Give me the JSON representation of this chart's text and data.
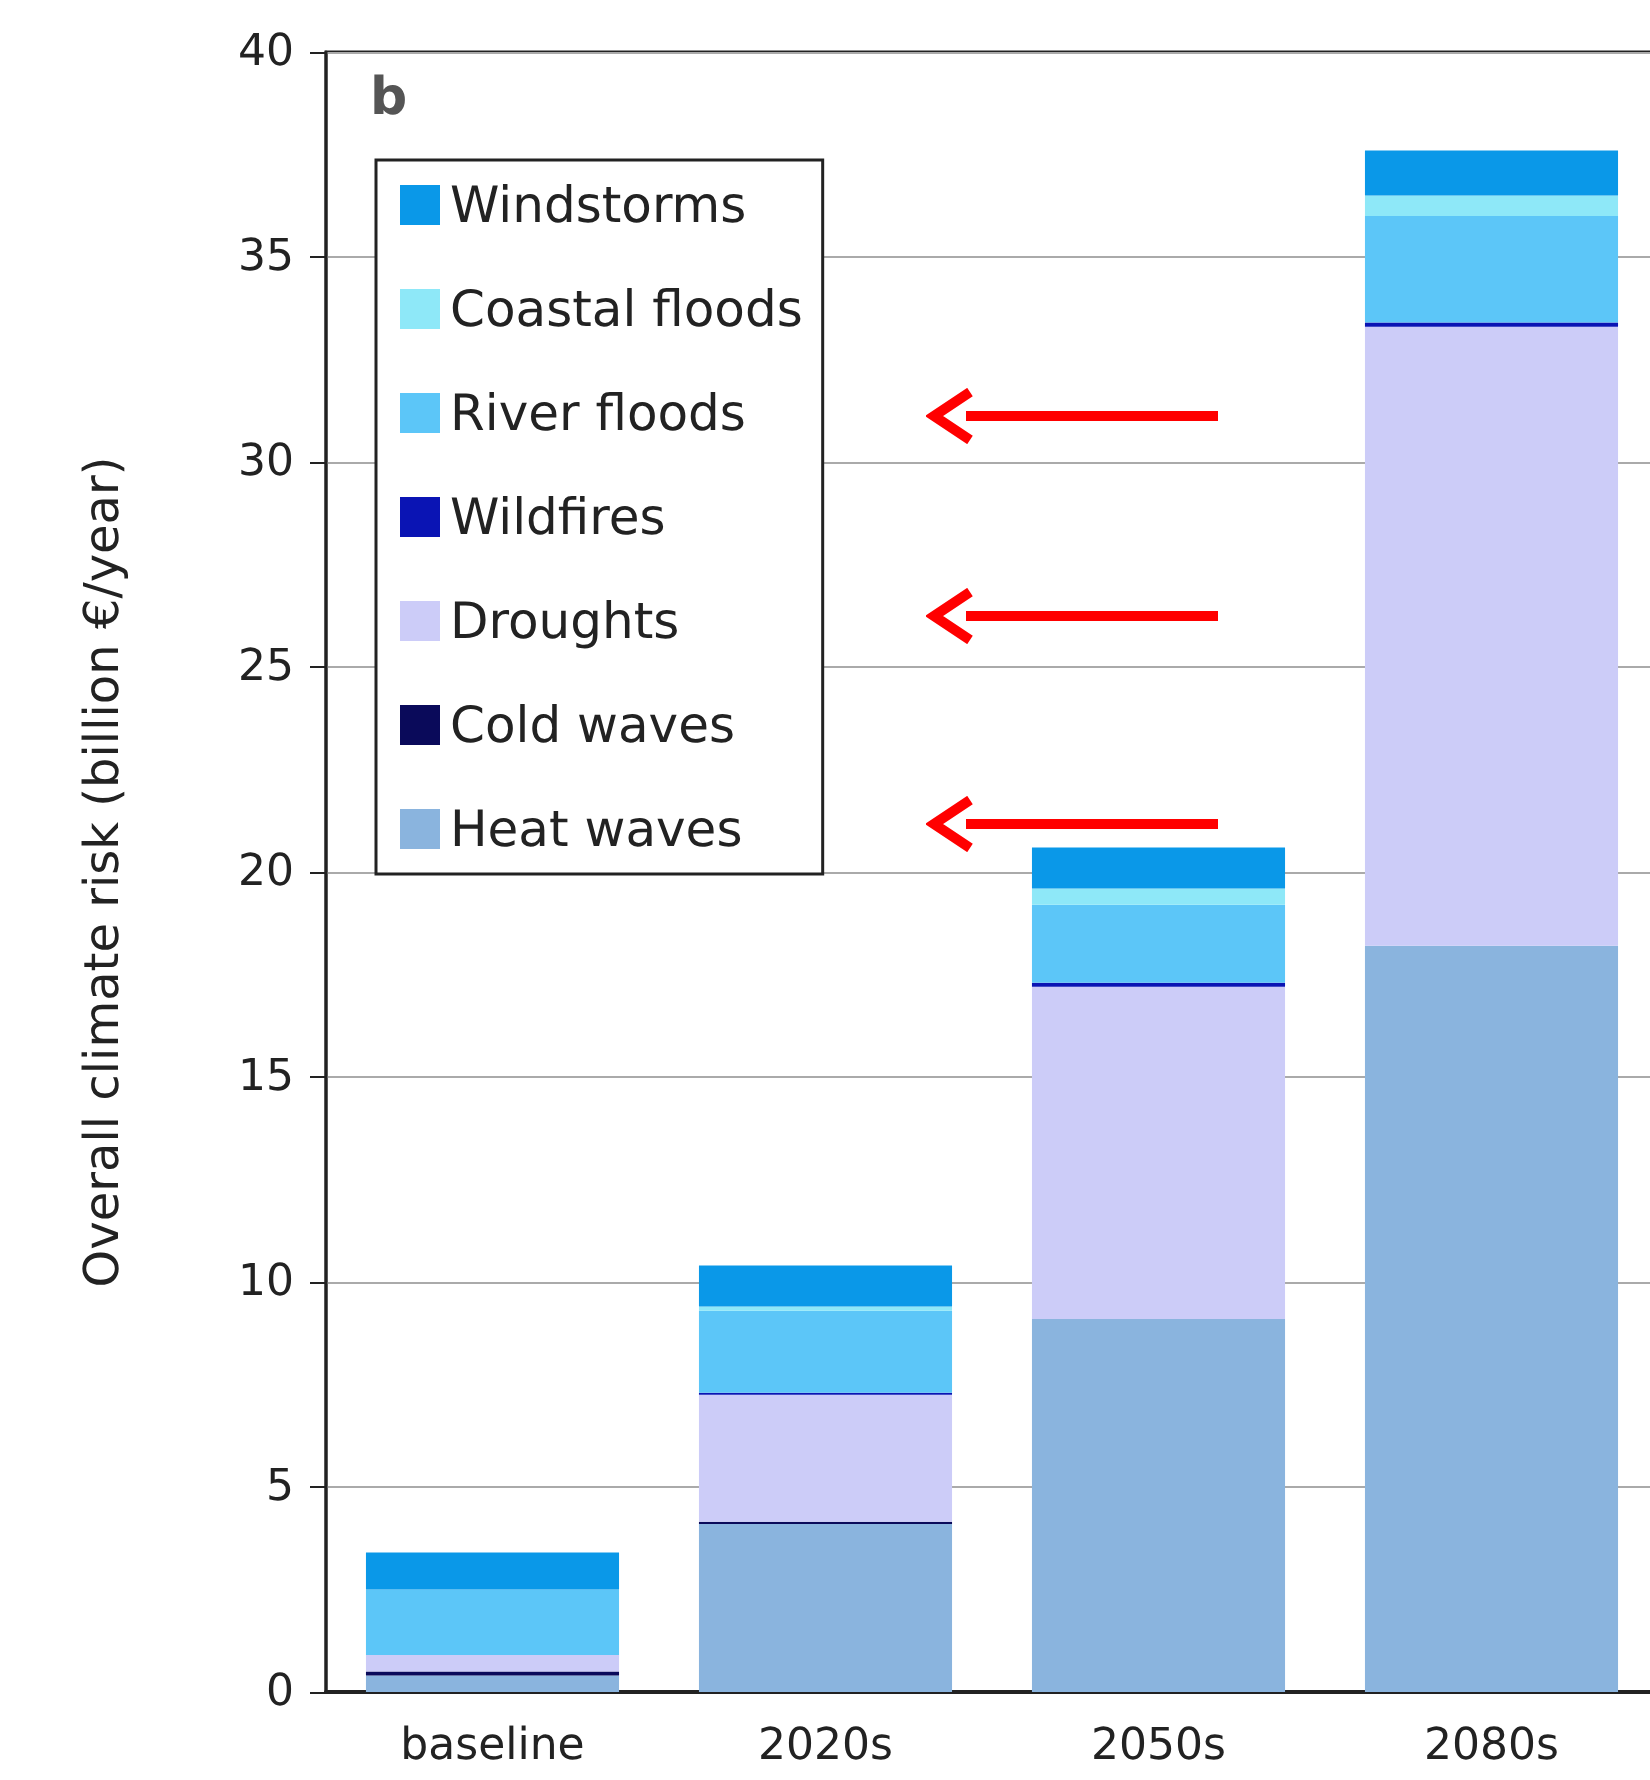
{
  "chart_data": {
    "type": "bar",
    "stacked": true,
    "ylabel": "Overall climate risk (billion €/year)",
    "annotations": [
      "b"
    ],
    "categories": [
      "baseline",
      "2020s",
      "2050s",
      "2080s"
    ],
    "series": [
      {
        "name": "Heat waves",
        "color": "#8ab4de",
        "values": [
          0.4,
          4.1,
          9.1,
          18.2
        ]
      },
      {
        "name": "Cold waves",
        "color": "#0a0a5a",
        "values": [
          0.1,
          0.05,
          0,
          0
        ]
      },
      {
        "name": "Droughts",
        "color": "#ccccf8",
        "values": [
          0.4,
          3.1,
          8.1,
          15.1
        ]
      },
      {
        "name": "Wildfires",
        "color": "#0a14b4",
        "values": [
          0,
          0.05,
          0.1,
          0.1
        ]
      },
      {
        "name": "River floods",
        "color": "#5cc6f8",
        "values": [
          1.6,
          2.0,
          1.9,
          2.6
        ]
      },
      {
        "name": "Coastal floods",
        "color": "#8ee8f8",
        "values": [
          0,
          0.1,
          0.4,
          0.5
        ]
      },
      {
        "name": "Windstorms",
        "color": "#0a98e8",
        "values": [
          0.9,
          1.0,
          1.0,
          1.1
        ]
      }
    ],
    "ylim": [
      0,
      40
    ],
    "yticks": [
      0,
      5,
      10,
      15,
      20,
      25,
      30,
      35,
      40
    ],
    "grid": "y",
    "legend": "top left"
  }
}
